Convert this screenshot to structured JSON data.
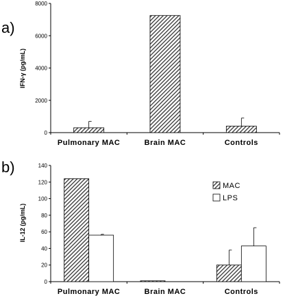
{
  "chart_data": [
    {
      "type": "bar",
      "panel_label": "a)",
      "categories": [
        "Pulmonary MAC",
        "Brain MAC",
        "Controls"
      ],
      "series": [
        {
          "values": [
            300,
            7250,
            400
          ],
          "errors": [
            400,
            0,
            500
          ],
          "color": "#444444",
          "pattern": "hatch"
        }
      ],
      "ylabel": "IFN-γ (pg/mL)",
      "ylim": [
        0,
        8000
      ],
      "yticks": [
        0,
        2000,
        4000,
        6000,
        8000
      ],
      "ytick_labels": [
        "0",
        "2000",
        "4000",
        "6000",
        "8000"
      ],
      "grid": false
    },
    {
      "type": "bar",
      "panel_label": "b)",
      "categories": [
        "Pulmonary MAC",
        "Brain MAC",
        "Controls"
      ],
      "series": [
        {
          "name": "MAC",
          "values": [
            124,
            1,
            20
          ],
          "errors": [
            0,
            0,
            18
          ],
          "color": "#444444",
          "pattern": "hatch"
        },
        {
          "name": "LPS",
          "values": [
            56,
            0,
            43
          ],
          "errors": [
            1,
            0,
            22
          ],
          "color": "#ffffff",
          "pattern": "solid"
        }
      ],
      "ylabel": "IL-12 (pg/mL)",
      "ylim": [
        0,
        140
      ],
      "yticks": [
        0,
        20,
        40,
        60,
        80,
        100,
        120,
        140
      ],
      "ytick_labels": [
        "0",
        "20",
        "40",
        "60",
        "80",
        "100",
        "120",
        "140"
      ],
      "legend": "top-right",
      "grid": false
    }
  ]
}
